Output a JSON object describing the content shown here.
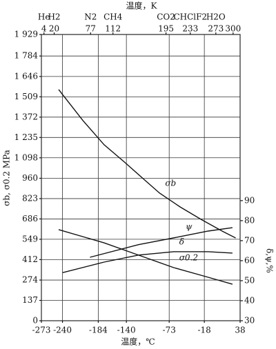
{
  "chart_data": {
    "type": "line",
    "title": "温度，K",
    "xlabel": "温度，℃",
    "ylabel": "σb, σ0.2 MPa",
    "y2label": "δ,ψ,%",
    "xlim": [
      -273,
      38
    ],
    "xticks": [
      -273,
      -240,
      -184,
      -140,
      -73,
      -18,
      38
    ],
    "x2lim": [
      0,
      311
    ],
    "x2ticks": [
      4,
      20,
      77,
      112,
      195,
      233,
      273,
      300
    ],
    "x2tick_gases": [
      "He",
      "H2",
      "N2",
      "CH4",
      "CO2",
      "CHClF2",
      "H2O",
      null
    ],
    "ylim": [
      0,
      1929
    ],
    "yticks": [
      0,
      137,
      274,
      412,
      549,
      686,
      823,
      960,
      {
        "value": 1098,
        "label": "1 098"
      },
      {
        "value": 1235,
        "label": "1 235"
      },
      {
        "value": 1372,
        "label": "1 372"
      },
      {
        "value": 1509,
        "label": "1 509"
      },
      {
        "value": 1646,
        "label": "1 646"
      },
      {
        "value": 1784,
        "label": "1 784"
      },
      {
        "value": 1929,
        "label": "1 929"
      }
    ],
    "y2lim": [
      30,
      173
    ],
    "y2ticks": [
      30,
      40,
      50,
      60,
      70,
      80,
      90
    ],
    "grid": true,
    "series": [
      {
        "name": "σb",
        "color": "#111111",
        "axis": "y",
        "x": [
          -246,
          -208,
          -175,
          -143,
          -115,
          -88,
          -56,
          -23,
          10,
          31
        ],
        "values": [
          1558,
          1349,
          1186,
          1069,
          962,
          860,
          767,
          683,
          604,
          558
        ]
      },
      {
        "name": "σ0.2",
        "color": "#111111",
        "axis": "y",
        "x": [
          -246,
          -175,
          -121,
          -66,
          -12,
          26
        ],
        "values": [
          614,
          525,
          442,
          358,
          293,
          246
        ]
      },
      {
        "name": "ψ",
        "color": "#111111",
        "axis": "y2",
        "x": [
          -197,
          -121,
          -56,
          -12,
          26
        ],
        "values": [
          61.7,
          68,
          72,
          74.8,
          76.5
        ]
      },
      {
        "name": "δ",
        "color": "#111111",
        "axis": "y2",
        "x": [
          -240,
          -175,
          -121,
          -66,
          -12,
          26
        ],
        "values": [
          54,
          59.3,
          62.8,
          64.5,
          64.5,
          63.8
        ]
      }
    ]
  }
}
